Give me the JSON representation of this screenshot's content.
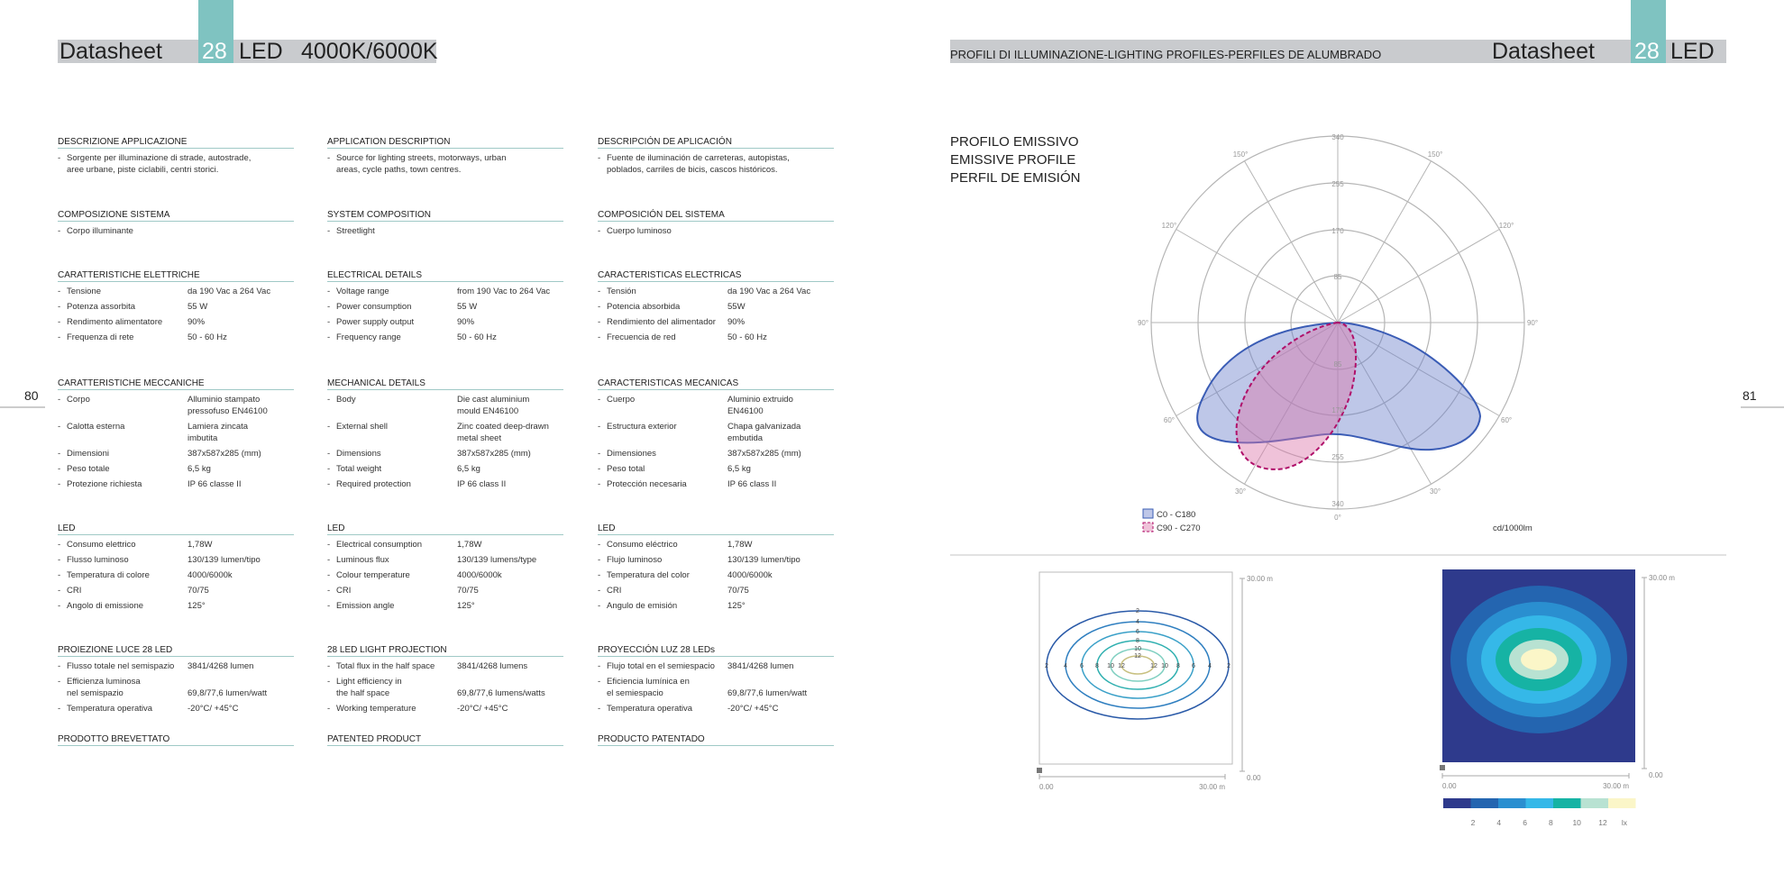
{
  "header": {
    "left": {
      "title": "Datasheet",
      "number": "28",
      "led": "LED",
      "temperature": "4000K/6000K"
    },
    "center": "PROFILI DI ILLUMINAZIONE-LIGHTING PROFILES-PERFILES DE ALUMBRADO",
    "right": {
      "title": "Datasheet",
      "number": "28",
      "led": "LED"
    }
  },
  "page_numbers": [
    "80",
    "81"
  ],
  "columns": [
    {
      "sections": [
        {
          "heading": "DESCRIZIONE APPLICAZIONE",
          "items": [
            {
              "label": "Sorgente per illuminazione di strade, autostrade,\naree urbane, piste ciclabili, centri storici."
            }
          ]
        },
        {
          "heading": "COMPOSIZIONE SISTEMA",
          "items": [
            {
              "label": "Corpo illuminante"
            }
          ]
        },
        {
          "heading": "CARATTERISTICHE ELETTRICHE",
          "items": [
            {
              "label": "Tensione",
              "value": "da 190 Vac a 264 Vac"
            },
            {
              "label": "Potenza assorbita",
              "value": "55 W"
            },
            {
              "label": "Rendimento alimentatore",
              "value": "90%"
            },
            {
              "label": "Frequenza di rete",
              "value": "50 - 60 Hz"
            }
          ]
        },
        {
          "heading": "CARATTERISTICHE MECCANICHE",
          "items": [
            {
              "label": "Corpo",
              "value": "Alluminio stampato\npressofuso EN46100"
            },
            {
              "label": "Calotta esterna",
              "value": "Lamiera zincata\nimbutita"
            },
            {
              "label": "Dimensioni",
              "value": "387x587x285 (mm)"
            },
            {
              "label": "Peso totale",
              "value": "6,5 kg"
            },
            {
              "label": "Protezione richiesta",
              "value": "IP 66 classe II"
            }
          ]
        },
        {
          "heading": "LED",
          "items": [
            {
              "label": "Consumo elettrico",
              "value": "1,78W"
            },
            {
              "label": "Flusso luminoso",
              "value": "130/139 lumen/tipo"
            },
            {
              "label": "Temperatura di colore",
              "value": "4000/6000k"
            },
            {
              "label": "CRI",
              "value": "70/75"
            },
            {
              "label": "Angolo di emissione",
              "value": "125°"
            }
          ]
        },
        {
          "heading": "PROIEZIONE LUCE 28 LED",
          "items": [
            {
              "label": "Flusso totale nel semispazio",
              "value": "3841/4268 lumen"
            },
            {
              "label": "Efficienza luminosa\nnel semispazio",
              "value": "\n69,8/77,6 lumen/watt"
            },
            {
              "label": "Temperatura operativa",
              "value": "-20°C/ +45°C"
            }
          ]
        },
        {
          "heading": "PRODOTTO BREVETTATO",
          "items": []
        }
      ]
    },
    {
      "sections": [
        {
          "heading": "APPLICATION DESCRIPTION",
          "items": [
            {
              "label": "Source for lighting streets, motorways, urban\nareas, cycle paths, town centres."
            }
          ]
        },
        {
          "heading": "SYSTEM COMPOSITION",
          "items": [
            {
              "label": "Streetlight"
            }
          ]
        },
        {
          "heading": "ELECTRICAL DETAILS",
          "items": [
            {
              "label": "Voltage range",
              "value": "from 190 Vac to 264 Vac"
            },
            {
              "label": "Power consumption",
              "value": "55 W"
            },
            {
              "label": "Power supply output",
              "value": "90%"
            },
            {
              "label": "Frequency range",
              "value": "50 - 60 Hz"
            }
          ]
        },
        {
          "heading": "MECHANICAL DETAILS",
          "items": [
            {
              "label": "Body",
              "value": "Die cast aluminium\nmould EN46100"
            },
            {
              "label": "External shell",
              "value": "Zinc coated deep-drawn\nmetal sheet"
            },
            {
              "label": "Dimensions",
              "value": "387x587x285 (mm)"
            },
            {
              "label": "Total weight",
              "value": "6,5 kg"
            },
            {
              "label": "Required protection",
              "value": "IP 66 class II"
            }
          ]
        },
        {
          "heading": "LED",
          "items": [
            {
              "label": "Electrical consumption",
              "value": "1,78W"
            },
            {
              "label": "Luminous flux",
              "value": "130/139 lumens/type"
            },
            {
              "label": "Colour temperature",
              "value": "4000/6000k"
            },
            {
              "label": "CRI",
              "value": "70/75"
            },
            {
              "label": "Emission angle",
              "value": "125°"
            }
          ]
        },
        {
          "heading": "28 LED LIGHT PROJECTION",
          "items": [
            {
              "label": "Total flux in the half space",
              "value": "3841/4268 lumens"
            },
            {
              "label": "Light efficiency in\nthe half space",
              "value": "\n69,8/77,6 lumens/watts"
            },
            {
              "label": "Working temperature",
              "value": "-20°C/ +45°C"
            }
          ]
        },
        {
          "heading": "PATENTED PRODUCT",
          "items": []
        }
      ]
    },
    {
      "sections": [
        {
          "heading": "DESCRIPCIÓN DE APLICACIÓN",
          "items": [
            {
              "label": "Fuente de iluminación de carreteras, autopistas,\npoblados, carriles de bicis, cascos históricos."
            }
          ]
        },
        {
          "heading": "COMPOSICIÓN DEL SISTEMA",
          "items": [
            {
              "label": "Cuerpo luminoso"
            }
          ]
        },
        {
          "heading": "CARACTERISTICAS ELECTRICAS",
          "items": [
            {
              "label": "Tensión",
              "value": "da 190 Vac a 264 Vac"
            },
            {
              "label": "Potencia absorbida",
              "value": "55W"
            },
            {
              "label": "Rendimiento del alimentador",
              "value": "90%"
            },
            {
              "label": "Frecuencia de red",
              "value": "50 - 60 Hz"
            }
          ]
        },
        {
          "heading": "CARACTERISTICAS MECANICAS",
          "items": [
            {
              "label": "Cuerpo",
              "value": "Aluminio extruido\nEN46100"
            },
            {
              "label": "Estructura exterior",
              "value": "Chapa galvanizada\nembutida"
            },
            {
              "label": "Dimensiones",
              "value": "387x587x285 (mm)"
            },
            {
              "label": "Peso total",
              "value": "6,5 kg"
            },
            {
              "label": "Protección necesaria",
              "value": "IP 66 class II"
            }
          ]
        },
        {
          "heading": "LED",
          "items": [
            {
              "label": "Consumo eléctrico",
              "value": "1,78W"
            },
            {
              "label": "Flujo luminoso",
              "value": "130/139 lumen/tipo"
            },
            {
              "label": "Temperatura del color",
              "value": "4000/6000k"
            },
            {
              "label": "CRI",
              "value": "70/75"
            },
            {
              "label": "Angulo de emisión",
              "value": "125°"
            }
          ]
        },
        {
          "heading": "PROYECCIÓN LUZ 28 LEDs",
          "items": [
            {
              "label": "Flujo total en el semiespacio",
              "value": "3841/4268 lumen"
            },
            {
              "label": "Eficiencia lumínica en\nel semiespacio",
              "value": "\n69,8/77,6 lumen/watt"
            },
            {
              "label": "Temperatura operativa",
              "value": "-20°C/ +45°C"
            }
          ]
        },
        {
          "heading": "PRODUCTO PATENTADO",
          "items": []
        }
      ]
    }
  ],
  "profile": {
    "title": [
      "PROFILO EMISSIVO",
      "EMISSIVE PROFILE",
      "PERFIL DE EMISIÓN"
    ],
    "radial_labels": [
      "85",
      "170",
      "255",
      "340"
    ],
    "angle_labels": [
      "0°",
      "30°",
      "60°",
      "90°",
      "120°",
      "150°"
    ],
    "legend": [
      "C0 - C180",
      "C90 - C270"
    ],
    "unit": "cd/1000lm"
  },
  "isolux": {
    "axis_labels": {
      "min": "0.00",
      "max": "30.00 m"
    },
    "levels": [
      "2",
      "4",
      "6",
      "8",
      "10",
      "12"
    ],
    "unit": "lx"
  }
}
